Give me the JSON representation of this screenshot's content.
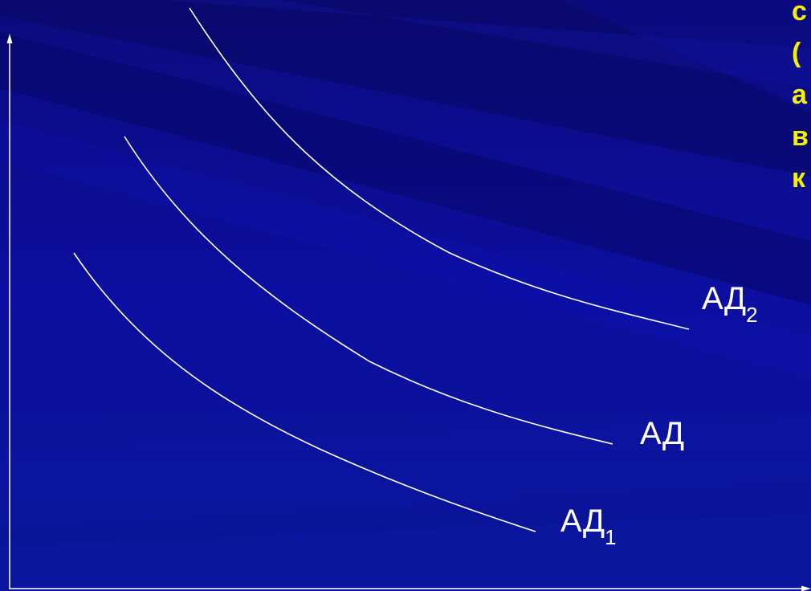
{
  "diagram": {
    "curves": [
      {
        "label": "АД",
        "subscript": "2"
      },
      {
        "label": "АД",
        "subscript": ""
      },
      {
        "label": "АД",
        "subscript": "1"
      }
    ],
    "side_text_fragments": [
      "с",
      "(",
      "а",
      "в",
      "к"
    ]
  },
  "colors": {
    "background": "#0a0a8c",
    "curves": "#ffffff",
    "axes": "#ffffff",
    "side_text": "#f5f000"
  }
}
